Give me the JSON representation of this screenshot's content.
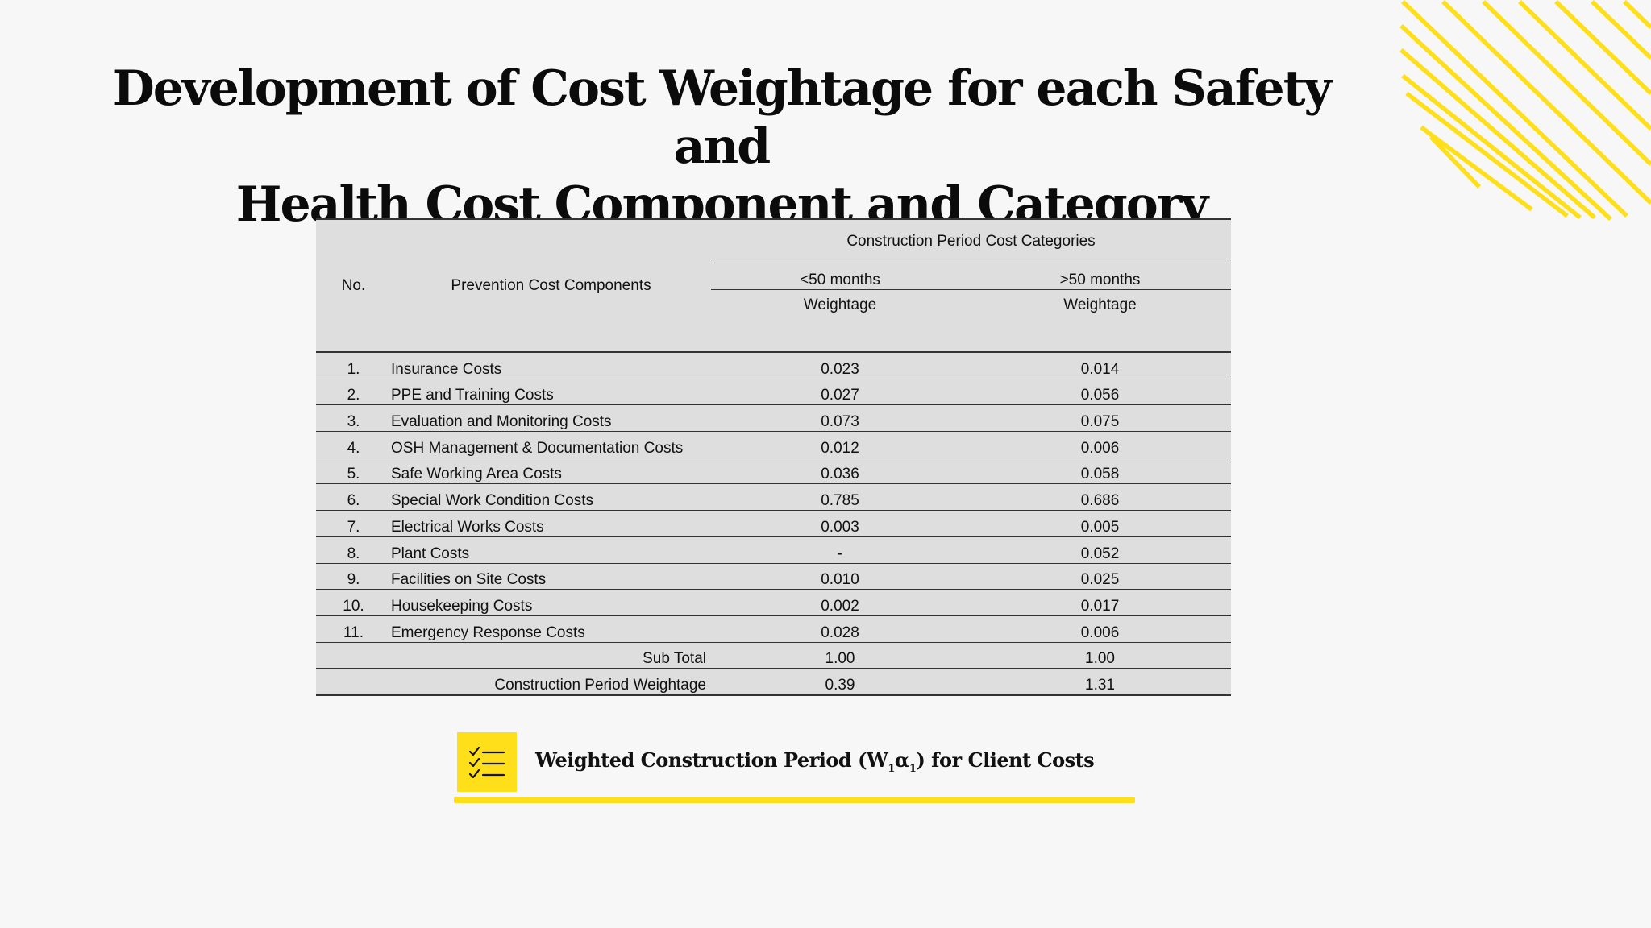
{
  "title": {
    "line1": "Development of Cost Weightage for each Safety and",
    "line2": "Health Cost Component and Category"
  },
  "table": {
    "headers": {
      "no": "No.",
      "components": "Prevention Cost Components",
      "category_group": "Construction Period Cost Categories",
      "period_lt": "<50 months",
      "period_gt": ">50 months",
      "weight_lt": "Weightage",
      "weight_gt": "Weightage"
    },
    "rows": [
      {
        "no": "1.",
        "component": "Insurance Costs",
        "lt": "0.023",
        "gt": "0.014"
      },
      {
        "no": "2.",
        "component": "PPE and Training Costs",
        "lt": "0.027",
        "gt": "0.056"
      },
      {
        "no": "3.",
        "component": "Evaluation and Monitoring Costs",
        "lt": "0.073",
        "gt": "0.075"
      },
      {
        "no": "4.",
        "component": "OSH Management & Documentation Costs",
        "lt": "0.012",
        "gt": "0.006"
      },
      {
        "no": "5.",
        "component": "Safe Working Area Costs",
        "lt": "0.036",
        "gt": "0.058"
      },
      {
        "no": "6.",
        "component": "Special Work Condition Costs",
        "lt": "0.785",
        "gt": "0.686"
      },
      {
        "no": "7.",
        "component": "Electrical Works Costs",
        "lt": "0.003",
        "gt": "0.005"
      },
      {
        "no": "8.",
        "component": "Plant Costs",
        "lt": "-",
        "gt": "0.052"
      },
      {
        "no": "9.",
        "component": "Facilities on Site Costs",
        "lt": "0.010",
        "gt": "0.025"
      },
      {
        "no": "10.",
        "component": "Housekeeping Costs",
        "lt": "0.002",
        "gt": "0.017"
      },
      {
        "no": "11.",
        "component": "Emergency Response Costs",
        "lt": "0.028",
        "gt": "0.006"
      }
    ],
    "subtotal": {
      "label": "Sub Total",
      "lt": "1.00",
      "gt": "1.00"
    },
    "period_weightage": {
      "label": "Construction Period Weightage",
      "lt": "0.39",
      "gt": "1.31"
    }
  },
  "banner": {
    "icon": "checklist-icon",
    "text_before": "Weighted Construction Period (W",
    "sub1": "1",
    "greek": "α",
    "sub2": "1",
    "text_after": ") for Client Costs"
  },
  "colors": {
    "accent": "#ffdf1a",
    "background": "#f7f7f7",
    "table_fill": "#dedede",
    "text": "#111111"
  }
}
